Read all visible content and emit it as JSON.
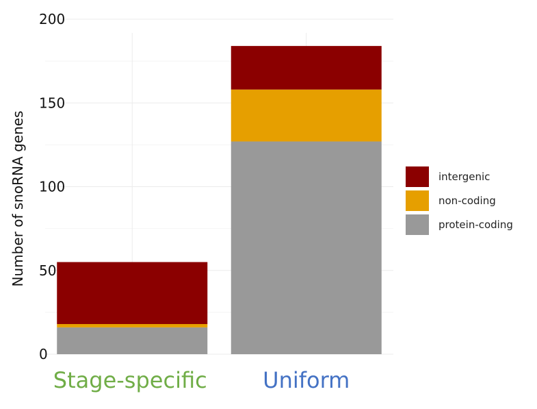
{
  "chart_data": {
    "type": "bar",
    "stacked": true,
    "categories": [
      "Stage-specific",
      "Uniform"
    ],
    "category_colors": [
      "#70ad47",
      "#4472c4"
    ],
    "series": [
      {
        "name": "protein-coding",
        "color": "#999999",
        "values": [
          16,
          127
        ]
      },
      {
        "name": "non-coding",
        "color": "#e69f00",
        "values": [
          2,
          31
        ]
      },
      {
        "name": "intergenic",
        "color": "#8b0000",
        "values": [
          37,
          26
        ]
      }
    ],
    "legend_order": [
      "intergenic",
      "non-coding",
      "protein-coding"
    ],
    "ylabel": "Number of snoRNA genes",
    "xlabel": "",
    "ylim": [
      0,
      200
    ],
    "yticks": [
      "0",
      "50",
      "100",
      "150",
      "200"
    ],
    "grid": true,
    "legend_position": "right"
  }
}
